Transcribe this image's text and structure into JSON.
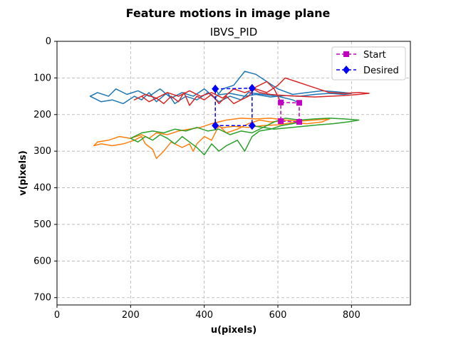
{
  "chart_data": {
    "type": "line",
    "suptitle": "Feature motions in image plane",
    "title": "IBVS_PID",
    "xlabel": "u(pixels)",
    "ylabel": "v(pixels)",
    "xlim": [
      0,
      960
    ],
    "ylim": [
      720,
      0
    ],
    "y_inverted": true,
    "xticks": [
      0,
      200,
      400,
      600,
      800
    ],
    "yticks": [
      0,
      100,
      200,
      300,
      400,
      500,
      600,
      700
    ],
    "grid": true,
    "legend_position": "top-right",
    "legend": [
      {
        "name": "Start",
        "color": "#bf00bf",
        "marker": "square",
        "linestyle": "dashed"
      },
      {
        "name": "Desired",
        "color": "#0000ff",
        "marker": "diamond",
        "linestyle": "dashed"
      }
    ],
    "start_points": [
      [
        608,
        167
      ],
      [
        658,
        168
      ],
      [
        658,
        220
      ],
      [
        608,
        218
      ]
    ],
    "desired_points": [
      [
        430,
        130
      ],
      [
        530,
        128
      ],
      [
        530,
        230
      ],
      [
        430,
        230
      ]
    ],
    "trajectories": [
      {
        "color": "#1f77b4",
        "points": [
          [
            658,
            168
          ],
          [
            640,
            160
          ],
          [
            600,
            150
          ],
          [
            560,
            145
          ],
          [
            520,
            140
          ],
          [
            500,
            160
          ],
          [
            470,
            150
          ],
          [
            440,
            165
          ],
          [
            410,
            140
          ],
          [
            380,
            160
          ],
          [
            350,
            150
          ],
          [
            320,
            170
          ],
          [
            300,
            140
          ],
          [
            270,
            165
          ],
          [
            250,
            140
          ],
          [
            230,
            160
          ],
          [
            210,
            150
          ],
          [
            180,
            170
          ],
          [
            150,
            160
          ],
          [
            120,
            165
          ],
          [
            100,
            155
          ],
          [
            90,
            150
          ],
          [
            110,
            140
          ],
          [
            140,
            150
          ],
          [
            160,
            130
          ],
          [
            190,
            145
          ],
          [
            220,
            135
          ],
          [
            250,
            150
          ],
          [
            280,
            130
          ],
          [
            310,
            155
          ],
          [
            340,
            140
          ],
          [
            370,
            150
          ],
          [
            400,
            130
          ],
          [
            430,
            155
          ],
          [
            450,
            130
          ],
          [
            480,
            120
          ],
          [
            510,
            82
          ],
          [
            540,
            90
          ],
          [
            570,
            110
          ],
          [
            600,
            130
          ],
          [
            640,
            145
          ],
          [
            680,
            140
          ],
          [
            720,
            135
          ],
          [
            760,
            138
          ],
          [
            800,
            142
          ],
          [
            780,
            145
          ],
          [
            740,
            142
          ],
          [
            700,
            145
          ],
          [
            660,
            150
          ],
          [
            620,
            148
          ],
          [
            580,
            152
          ],
          [
            540,
            145
          ],
          [
            510,
            150
          ],
          [
            470,
            142
          ],
          [
            440,
            146
          ],
          [
            430,
            130
          ]
        ]
      },
      {
        "color": "#ff7f0e",
        "points": [
          [
            608,
            218
          ],
          [
            580,
            220
          ],
          [
            550,
            215
          ],
          [
            520,
            225
          ],
          [
            490,
            240
          ],
          [
            460,
            250
          ],
          [
            440,
            230
          ],
          [
            420,
            270
          ],
          [
            400,
            260
          ],
          [
            380,
            280
          ],
          [
            370,
            300
          ],
          [
            360,
            280
          ],
          [
            340,
            290
          ],
          [
            310,
            275
          ],
          [
            290,
            300
          ],
          [
            270,
            320
          ],
          [
            260,
            295
          ],
          [
            240,
            280
          ],
          [
            230,
            260
          ],
          [
            210,
            270
          ],
          [
            180,
            280
          ],
          [
            150,
            285
          ],
          [
            120,
            280
          ],
          [
            100,
            285
          ],
          [
            110,
            275
          ],
          [
            140,
            270
          ],
          [
            170,
            260
          ],
          [
            200,
            265
          ],
          [
            230,
            255
          ],
          [
            250,
            265
          ],
          [
            270,
            250
          ],
          [
            300,
            255
          ],
          [
            330,
            245
          ],
          [
            360,
            240
          ],
          [
            390,
            235
          ],
          [
            420,
            225
          ],
          [
            460,
            215
          ],
          [
            500,
            210
          ],
          [
            540,
            212
          ],
          [
            580,
            210
          ],
          [
            620,
            215
          ],
          [
            660,
            218
          ],
          [
            700,
            215
          ],
          [
            740,
            212
          ],
          [
            720,
            220
          ],
          [
            680,
            225
          ],
          [
            640,
            222
          ],
          [
            600,
            228
          ],
          [
            560,
            230
          ],
          [
            520,
            235
          ],
          [
            480,
            232
          ],
          [
            450,
            236
          ],
          [
            430,
            230
          ]
        ]
      },
      {
        "color": "#2ca02c",
        "points": [
          [
            658,
            220
          ],
          [
            640,
            225
          ],
          [
            610,
            230
          ],
          [
            580,
            240
          ],
          [
            550,
            245
          ],
          [
            530,
            260
          ],
          [
            510,
            300
          ],
          [
            490,
            270
          ],
          [
            460,
            285
          ],
          [
            440,
            300
          ],
          [
            420,
            280
          ],
          [
            400,
            310
          ],
          [
            380,
            290
          ],
          [
            360,
            275
          ],
          [
            340,
            260
          ],
          [
            320,
            280
          ],
          [
            300,
            265
          ],
          [
            280,
            255
          ],
          [
            260,
            270
          ],
          [
            240,
            260
          ],
          [
            220,
            275
          ],
          [
            200,
            265
          ],
          [
            230,
            250
          ],
          [
            260,
            245
          ],
          [
            290,
            250
          ],
          [
            320,
            240
          ],
          [
            350,
            245
          ],
          [
            380,
            235
          ],
          [
            410,
            245
          ],
          [
            440,
            240
          ],
          [
            470,
            255
          ],
          [
            500,
            245
          ],
          [
            530,
            250
          ],
          [
            560,
            235
          ],
          [
            590,
            220
          ],
          [
            620,
            210
          ],
          [
            660,
            215
          ],
          [
            700,
            212
          ],
          [
            740,
            210
          ],
          [
            780,
            212
          ],
          [
            820,
            215
          ],
          [
            790,
            220
          ],
          [
            750,
            225
          ],
          [
            710,
            228
          ],
          [
            670,
            232
          ],
          [
            630,
            236
          ],
          [
            590,
            240
          ],
          [
            560,
            235
          ],
          [
            540,
            232
          ],
          [
            530,
            230
          ]
        ]
      },
      {
        "color": "#d62728",
        "points": [
          [
            608,
            167
          ],
          [
            600,
            150
          ],
          [
            590,
            130
          ],
          [
            570,
            110
          ],
          [
            540,
            125
          ],
          [
            520,
            150
          ],
          [
            500,
            160
          ],
          [
            480,
            170
          ],
          [
            460,
            150
          ],
          [
            440,
            170
          ],
          [
            420,
            145
          ],
          [
            400,
            160
          ],
          [
            380,
            150
          ],
          [
            360,
            175
          ],
          [
            345,
            140
          ],
          [
            330,
            165
          ],
          [
            310,
            150
          ],
          [
            290,
            170
          ],
          [
            270,
            155
          ],
          [
            250,
            165
          ],
          [
            230,
            150
          ],
          [
            210,
            160
          ],
          [
            240,
            145
          ],
          [
            270,
            155
          ],
          [
            300,
            140
          ],
          [
            330,
            150
          ],
          [
            360,
            135
          ],
          [
            390,
            150
          ],
          [
            420,
            140
          ],
          [
            450,
            155
          ],
          [
            480,
            130
          ],
          [
            510,
            140
          ],
          [
            540,
            130
          ],
          [
            570,
            140
          ],
          [
            600,
            120
          ],
          [
            620,
            100
          ],
          [
            650,
            110
          ],
          [
            680,
            120
          ],
          [
            710,
            130
          ],
          [
            740,
            140
          ],
          [
            780,
            142
          ],
          [
            820,
            140
          ],
          [
            848,
            142
          ],
          [
            820,
            145
          ],
          [
            780,
            148
          ],
          [
            740,
            150
          ],
          [
            700,
            152
          ],
          [
            660,
            150
          ],
          [
            620,
            148
          ],
          [
            580,
            145
          ],
          [
            550,
            140
          ],
          [
            530,
            128
          ]
        ]
      }
    ]
  }
}
